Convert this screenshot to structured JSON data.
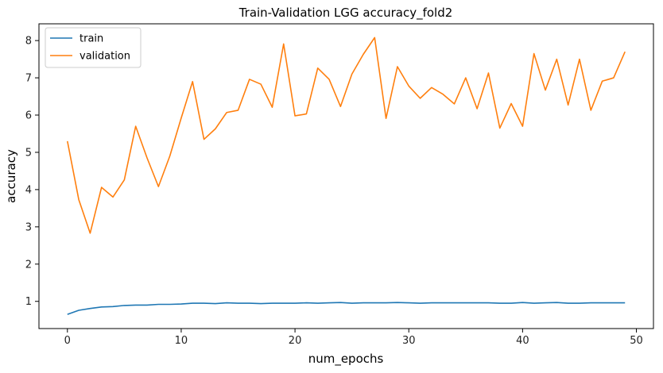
{
  "chart_data": {
    "type": "line",
    "title": "Train-Validation LGG accuracy_fold2",
    "xlabel": "num_epochs",
    "ylabel": "accuracy",
    "xlim": [
      -2.5,
      51.5
    ],
    "ylim": [
      0.27,
      8.45
    ],
    "xticks": [
      0,
      10,
      20,
      30,
      40,
      50
    ],
    "yticks": [
      1,
      2,
      3,
      4,
      5,
      6,
      7,
      8
    ],
    "grid": false,
    "legend_position": "top-left",
    "x": [
      0,
      1,
      2,
      3,
      4,
      5,
      6,
      7,
      8,
      9,
      10,
      11,
      12,
      13,
      14,
      15,
      16,
      17,
      18,
      19,
      20,
      21,
      22,
      23,
      24,
      25,
      26,
      27,
      28,
      29,
      30,
      31,
      32,
      33,
      34,
      35,
      36,
      37,
      38,
      39,
      40,
      41,
      42,
      43,
      44,
      45,
      46,
      47,
      48,
      49
    ],
    "series": [
      {
        "name": "train",
        "color": "#1f77b4",
        "values": [
          0.65,
          0.76,
          0.81,
          0.85,
          0.86,
          0.89,
          0.9,
          0.9,
          0.92,
          0.92,
          0.93,
          0.95,
          0.95,
          0.94,
          0.96,
          0.95,
          0.95,
          0.94,
          0.95,
          0.95,
          0.95,
          0.96,
          0.95,
          0.96,
          0.97,
          0.95,
          0.96,
          0.96,
          0.96,
          0.97,
          0.96,
          0.95,
          0.96,
          0.96,
          0.96,
          0.96,
          0.96,
          0.96,
          0.95,
          0.95,
          0.97,
          0.95,
          0.96,
          0.97,
          0.95,
          0.95,
          0.96,
          0.96,
          0.96,
          0.96
        ]
      },
      {
        "name": "validation",
        "color": "#ff7f0e",
        "values": [
          5.3,
          3.73,
          2.83,
          4.06,
          3.8,
          4.26,
          5.7,
          4.85,
          4.08,
          4.9,
          5.92,
          6.9,
          5.35,
          5.63,
          6.07,
          6.13,
          6.96,
          6.83,
          6.21,
          7.91,
          5.98,
          6.03,
          7.26,
          6.96,
          6.23,
          7.1,
          7.63,
          8.08,
          5.91,
          7.3,
          6.78,
          6.45,
          6.74,
          6.56,
          6.3,
          7.0,
          6.17,
          7.13,
          5.65,
          6.31,
          5.7,
          7.65,
          6.67,
          7.5,
          6.27,
          7.5,
          6.13,
          6.91,
          7.0,
          7.7
        ]
      }
    ]
  }
}
